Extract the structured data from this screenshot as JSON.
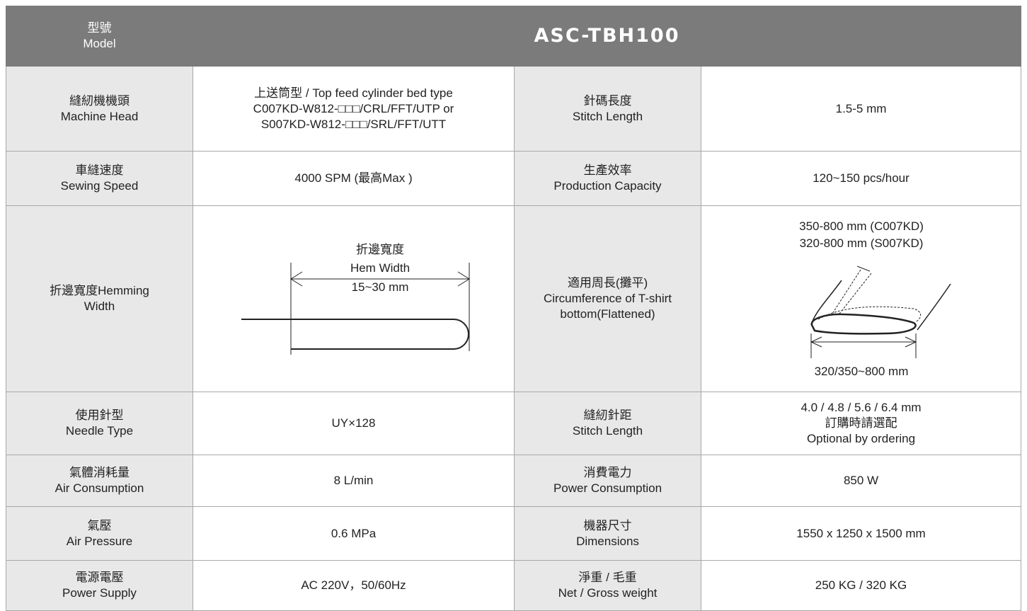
{
  "header": {
    "label": [
      "型號",
      "Model"
    ],
    "title": "ASC-TBH100"
  },
  "rows": [
    [
      [
        "縫紉機機頭",
        "Machine Head"
      ],
      [
        "上送筒型 / Top feed cylinder bed type",
        "C007KD-W812-□□□/CRL/FFT/UTP  or",
        "S007KD-W812-□□□/SRL/FFT/UTT"
      ],
      [
        "針碼長度",
        "Stitch Length"
      ],
      [
        "1.5-5 mm"
      ]
    ],
    [
      [
        "車縫速度",
        "Sewing Speed"
      ],
      [
        "4000 SPM (最高Max )"
      ],
      [
        "生產效率",
        "Production Capacity"
      ],
      [
        "120~150 pcs/hour"
      ]
    ],
    [
      [
        "折邊寬度Hemming",
        "Width"
      ],
      [
        "折邊寬度",
        "Hem  Width",
        "15~30 mm"
      ],
      [
        "適用周長(攤平)",
        "Circumference of T-shirt",
        "bottom(Flattened)"
      ],
      [
        "350-800 mm (C007KD)",
        "320-800 mm (S007KD)",
        "320/350~800 mm"
      ]
    ],
    [
      [
        "使用針型",
        "Needle Type"
      ],
      [
        "UY×128"
      ],
      [
        "縫紉針距",
        "Stitch Length"
      ],
      [
        "4.0 / 4.8 / 5.6 / 6.4 mm",
        "訂購時請選配",
        "Optional by ordering"
      ]
    ],
    [
      [
        "氣體消耗量",
        "Air Consumption"
      ],
      [
        "8 L/min"
      ],
      [
        "消費電力",
        "Power Consumption"
      ],
      [
        "850 W"
      ]
    ],
    [
      [
        "氣壓",
        "Air Pressure"
      ],
      [
        "0.6 MPa"
      ],
      [
        "機器尺寸",
        "Dimensions"
      ],
      [
        "1550 x 1250 x 1500 mm"
      ]
    ],
    [
      [
        "電源電壓",
        "Power Supply"
      ],
      [
        "AC 220V，50/60Hz"
      ],
      [
        "淨重 / 毛重",
        "Net / Gross weight"
      ],
      [
        "250 KG / 320 KG"
      ]
    ]
  ]
}
